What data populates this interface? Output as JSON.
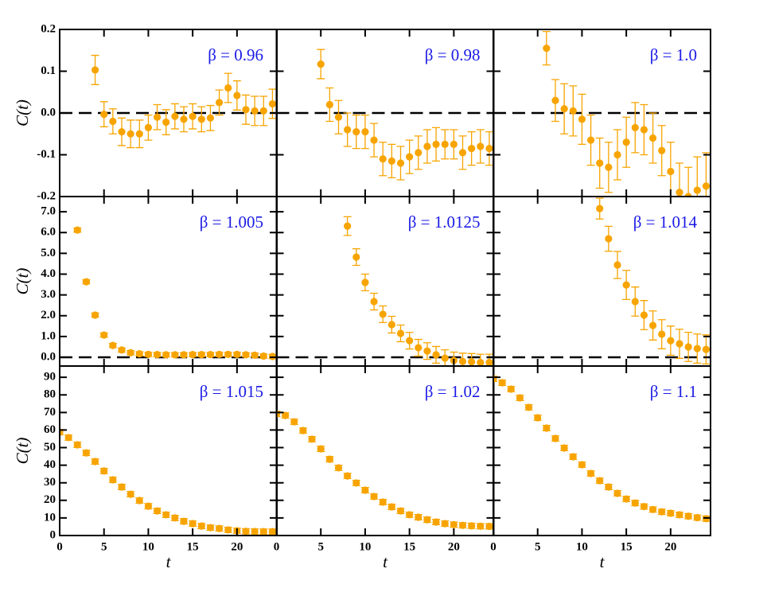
{
  "chart_data": [
    {
      "type": "scatter",
      "annotation": "β = 0.96",
      "ylabel": "C(t)",
      "color": "#f7a400",
      "hline": 0,
      "x": [
        4,
        5,
        6,
        7,
        8,
        9,
        10,
        11,
        12,
        13,
        14,
        15,
        16,
        17,
        18,
        19,
        20,
        21,
        22,
        23,
        24
      ],
      "values": [
        0.103,
        -0.003,
        -0.02,
        -0.045,
        -0.05,
        -0.05,
        -0.035,
        -0.01,
        -0.022,
        -0.008,
        -0.015,
        -0.008,
        -0.015,
        -0.012,
        0.025,
        0.06,
        0.042,
        0.008,
        0.005,
        0.005,
        0.022
      ],
      "errors": [
        0.035,
        0.03,
        0.03,
        0.033,
        0.033,
        0.033,
        0.03,
        0.03,
        0.03,
        0.03,
        0.03,
        0.03,
        0.03,
        0.03,
        0.03,
        0.035,
        0.035,
        0.035,
        0.035,
        0.035,
        0.035
      ],
      "xlim": [
        0,
        24.5
      ],
      "xticks": [
        0,
        5,
        10,
        15,
        20
      ],
      "ylim": [
        -0.2,
        0.2
      ],
      "yticks": [
        -0.2,
        -0.1,
        {
          "value": 0,
          "label": "0.0"
        },
        0.1,
        0.2
      ]
    },
    {
      "type": "scatter",
      "annotation": "β = 0.98",
      "color": "#f7a400",
      "hline": 0,
      "x": [
        5,
        6,
        7,
        8,
        9,
        10,
        11,
        12,
        13,
        14,
        15,
        16,
        17,
        18,
        19,
        20,
        21,
        22,
        23,
        24
      ],
      "values": [
        0.117,
        0.02,
        -0.01,
        -0.04,
        -0.045,
        -0.045,
        -0.065,
        -0.11,
        -0.115,
        -0.12,
        -0.105,
        -0.095,
        -0.08,
        -0.075,
        -0.075,
        -0.075,
        -0.095,
        -0.085,
        -0.08,
        -0.085
      ],
      "errors": [
        0.035,
        0.04,
        0.04,
        0.04,
        0.04,
        0.04,
        0.04,
        0.04,
        0.04,
        0.04,
        0.04,
        0.04,
        0.04,
        0.04,
        0.035,
        0.035,
        0.04,
        0.04,
        0.04,
        0.04
      ],
      "xlim": [
        0,
        24.5
      ],
      "xticks": [
        0,
        5,
        10,
        15,
        20
      ],
      "ylim": [
        -0.2,
        0.2
      ],
      "yticks": [
        -0.2,
        -0.1,
        {
          "value": 0,
          "label": "0.0"
        },
        0.1,
        0.2
      ]
    },
    {
      "type": "scatter",
      "annotation": "β = 1.0",
      "color": "#f7a400",
      "hline": 0,
      "x": [
        6,
        7,
        8,
        9,
        10,
        11,
        12,
        13,
        14,
        15,
        16,
        17,
        18,
        19,
        20,
        21,
        22,
        23,
        24
      ],
      "values": [
        0.155,
        0.03,
        0.01,
        0.005,
        -0.015,
        -0.065,
        -0.12,
        -0.13,
        -0.1,
        -0.07,
        -0.035,
        -0.04,
        -0.06,
        -0.09,
        -0.14,
        -0.19,
        -0.2,
        -0.185,
        -0.175
      ],
      "errors": [
        0.04,
        0.05,
        0.06,
        0.06,
        0.06,
        0.06,
        0.06,
        0.06,
        0.06,
        0.06,
        0.06,
        0.06,
        0.06,
        0.06,
        0.07,
        0.07,
        0.07,
        0.08,
        0.08
      ],
      "xlim": [
        0,
        24.5
      ],
      "xticks": [
        0,
        5,
        10,
        15,
        20
      ],
      "ylim": [
        -0.2,
        0.2
      ],
      "yticks": [
        -0.2,
        -0.1,
        {
          "value": 0,
          "label": "0.0"
        },
        0.1,
        0.2
      ]
    },
    {
      "type": "scatter",
      "annotation": "β = 1.005",
      "ylabel": "C(t)",
      "color": "#f7a400",
      "hline": 0,
      "x": [
        2,
        3,
        4,
        5,
        6,
        7,
        8,
        9,
        10,
        11,
        12,
        13,
        14,
        15,
        16,
        17,
        18,
        19,
        20,
        21,
        22,
        23,
        24
      ],
      "values": [
        6.12,
        3.63,
        2.03,
        1.07,
        0.57,
        0.35,
        0.22,
        0.17,
        0.14,
        0.13,
        0.12,
        0.12,
        0.12,
        0.13,
        0.13,
        0.13,
        0.14,
        0.14,
        0.14,
        0.12,
        0.1,
        0.06,
        0.04
      ],
      "errors": [
        0.1,
        0.1,
        0.1,
        0.1,
        0.1,
        0.1,
        0.1,
        0.1,
        0.1,
        0.1,
        0.1,
        0.1,
        0.1,
        0.1,
        0.1,
        0.1,
        0.1,
        0.1,
        0.1,
        0.1,
        0.1,
        0.1,
        0.1
      ],
      "xlim": [
        0,
        24.5
      ],
      "xticks": [
        0,
        5,
        10,
        15,
        20
      ],
      "ylim": [
        -0.42,
        7.73
      ],
      "yticks": [
        {
          "value": 0,
          "label": "0.0"
        },
        {
          "value": 1,
          "label": "1.0"
        },
        {
          "value": 2,
          "label": "2.0"
        },
        {
          "value": 3,
          "label": "3.0"
        },
        {
          "value": 4,
          "label": "4.0"
        },
        {
          "value": 5,
          "label": "5.0"
        },
        {
          "value": 6,
          "label": "6.0"
        },
        {
          "value": 7,
          "label": "7.0"
        }
      ]
    },
    {
      "type": "scatter",
      "annotation": "β = 1.0125",
      "color": "#f7a400",
      "hline": 0,
      "x": [
        8,
        9,
        10,
        11,
        12,
        13,
        14,
        15,
        16,
        17,
        18,
        19,
        20,
        21,
        22,
        23,
        24
      ],
      "values": [
        6.31,
        4.82,
        3.6,
        2.68,
        2.07,
        1.57,
        1.15,
        0.8,
        0.46,
        0.3,
        0.12,
        -0.04,
        -0.15,
        -0.2,
        -0.22,
        -0.25,
        -0.25
      ],
      "errors": [
        0.45,
        0.4,
        0.4,
        0.4,
        0.4,
        0.4,
        0.4,
        0.4,
        0.4,
        0.4,
        0.4,
        0.4,
        0.4,
        0.4,
        0.4,
        0.4,
        0.4
      ],
      "xlim": [
        0,
        24.5
      ],
      "xticks": [
        0,
        5,
        10,
        15,
        20
      ],
      "ylim": [
        -0.42,
        7.73
      ],
      "yticks": [
        {
          "value": 0,
          "label": "0.0"
        },
        {
          "value": 1,
          "label": "1.0"
        },
        {
          "value": 2,
          "label": "2.0"
        },
        {
          "value": 3,
          "label": "3.0"
        },
        {
          "value": 4,
          "label": "4.0"
        },
        {
          "value": 5,
          "label": "5.0"
        },
        {
          "value": 6,
          "label": "6.0"
        },
        {
          "value": 7,
          "label": "7.0"
        }
      ]
    },
    {
      "type": "scatter",
      "annotation": "β = 1.014",
      "color": "#f7a400",
      "hline": 0,
      "x": [
        12,
        13,
        14,
        15,
        16,
        17,
        18,
        19,
        20,
        21,
        22,
        23,
        24
      ],
      "values": [
        7.15,
        5.7,
        4.44,
        3.48,
        2.68,
        2.03,
        1.53,
        1.11,
        0.8,
        0.65,
        0.5,
        0.42,
        0.38
      ],
      "errors": [
        0.5,
        0.6,
        0.65,
        0.7,
        0.7,
        0.7,
        0.7,
        0.7,
        0.7,
        0.7,
        0.7,
        0.7,
        0.7
      ],
      "xlim": [
        0,
        24.5
      ],
      "xticks": [
        0,
        5,
        10,
        15,
        20
      ],
      "ylim": [
        -0.42,
        7.73
      ],
      "yticks": [
        {
          "value": 0,
          "label": "0.0"
        },
        {
          "value": 1,
          "label": "1.0"
        },
        {
          "value": 2,
          "label": "2.0"
        },
        {
          "value": 3,
          "label": "3.0"
        },
        {
          "value": 4,
          "label": "4.0"
        },
        {
          "value": 5,
          "label": "5.0"
        },
        {
          "value": 6,
          "label": "6.0"
        },
        {
          "value": 7,
          "label": "7.0"
        }
      ]
    },
    {
      "type": "scatter",
      "annotation": "β = 1.015",
      "ylabel": "C(t)",
      "xlabel": "t",
      "color": "#f7a400",
      "x": [
        0,
        1,
        2,
        3,
        4,
        5,
        6,
        7,
        8,
        9,
        10,
        11,
        12,
        13,
        14,
        15,
        16,
        17,
        18,
        19,
        20,
        21,
        22,
        23,
        24
      ],
      "values": [
        58.8,
        55.7,
        51.6,
        47,
        42.1,
        36.7,
        31.7,
        27.6,
        23.5,
        19.9,
        16.7,
        14,
        11.8,
        10,
        8.1,
        6.8,
        5.4,
        4.5,
        4,
        3.2,
        2.7,
        2.4,
        2.3,
        2.2,
        2.2
      ],
      "errors": [
        1.5,
        1.5,
        1.5,
        1.5,
        1.5,
        1.5,
        1.5,
        1.5,
        1.5,
        1.5,
        1.5,
        1.5,
        1.5,
        1.5,
        1.5,
        1.5,
        1.5,
        1.5,
        1.5,
        1.5,
        1.5,
        1.5,
        1.5,
        1.5,
        1.5
      ],
      "xlim": [
        0,
        24.5
      ],
      "xticks": [
        0,
        5,
        10,
        15,
        20
      ],
      "ylim": [
        0,
        96.4
      ],
      "yticks": [
        0,
        10,
        20,
        30,
        40,
        50,
        60,
        70,
        80,
        90
      ]
    },
    {
      "type": "scatter",
      "annotation": "β = 1.02",
      "xlabel": "t",
      "color": "#f7a400",
      "x": [
        0,
        1,
        2,
        3,
        4,
        5,
        6,
        7,
        8,
        9,
        10,
        11,
        12,
        13,
        14,
        15,
        16,
        17,
        18,
        19,
        20,
        21,
        22,
        23,
        24
      ],
      "values": [
        69.2,
        68.3,
        64.7,
        59.7,
        54.8,
        49.3,
        43.4,
        38.5,
        33.9,
        29.9,
        25.8,
        22.2,
        19,
        16.3,
        14,
        11.8,
        10.4,
        9,
        7.7,
        6.8,
        6.2,
        5.8,
        5.5,
        5.3,
        5.2
      ],
      "errors": [
        1.5,
        1.5,
        1.5,
        1.5,
        1.5,
        1.5,
        1.5,
        1.5,
        1.5,
        1.5,
        1.5,
        1.5,
        1.5,
        1.5,
        1.5,
        1.5,
        1.5,
        1.5,
        1.5,
        1.5,
        1.5,
        1.5,
        1.5,
        1.5,
        1.5
      ],
      "xlim": [
        0,
        24.5
      ],
      "xticks": [
        0,
        5,
        10,
        15,
        20
      ],
      "ylim": [
        0,
        96.4
      ],
      "yticks": [
        0,
        10,
        20,
        30,
        40,
        50,
        60,
        70,
        80,
        90
      ]
    },
    {
      "type": "scatter",
      "annotation": "β = 1.1",
      "xlabel": "t",
      "color": "#f7a400",
      "x": [
        0,
        1,
        2,
        3,
        4,
        5,
        6,
        7,
        8,
        9,
        10,
        11,
        12,
        13,
        14,
        15,
        16,
        17,
        18,
        19,
        20,
        21,
        22,
        23,
        24
      ],
      "values": [
        89.1,
        86.9,
        83.3,
        78.3,
        72.9,
        67,
        61.1,
        55.2,
        49.8,
        44.8,
        40.3,
        35.3,
        31.2,
        27.6,
        24,
        20.8,
        18.5,
        16.5,
        14.8,
        13.5,
        12.7,
        11.8,
        11,
        10.2,
        9.6
      ],
      "errors": [
        1.5,
        1.5,
        1.5,
        1.5,
        1.5,
        1.5,
        1.5,
        1.5,
        1.5,
        1.5,
        1.5,
        1.5,
        1.5,
        1.5,
        1.5,
        1.5,
        1.5,
        1.5,
        1.5,
        1.5,
        1.5,
        1.5,
        1.5,
        1.5,
        1.5
      ],
      "xlim": [
        0,
        24.5
      ],
      "xticks": [
        0,
        5,
        10,
        15,
        20
      ],
      "ylim": [
        0,
        96.4
      ],
      "yticks": [
        0,
        10,
        20,
        30,
        40,
        50,
        60,
        70,
        80,
        90
      ]
    }
  ]
}
